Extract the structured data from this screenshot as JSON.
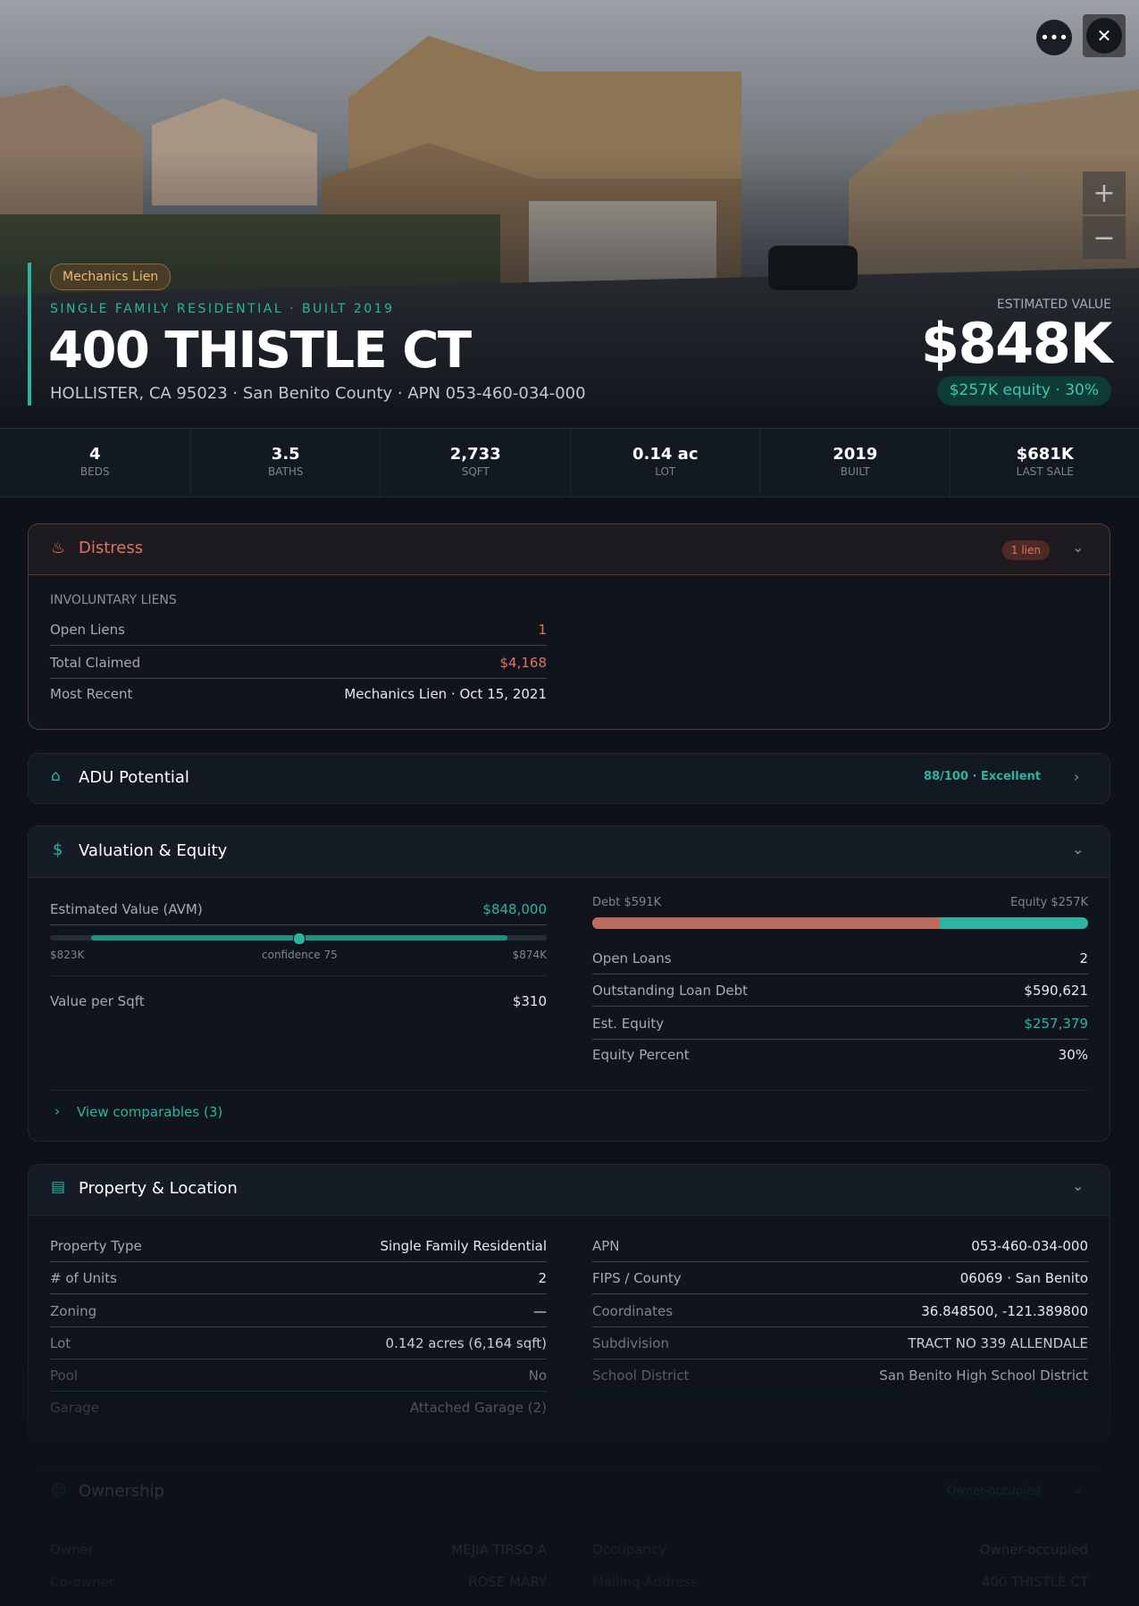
{
  "hero": {
    "badge": "Mechanics Lien",
    "subtitle": "SINGLE FAMILY RESIDENTIAL · BUILT 2019",
    "title": "400 THISTLE CT",
    "address": "HOLLISTER, CA 95023 · San Benito County · APN 053-460-034-000",
    "estimate_label": "ESTIMATED VALUE",
    "estimate_value": "$848K",
    "equity_pill": "$257K equity · 30%"
  },
  "stats": [
    {
      "value": "4",
      "label": "BEDS"
    },
    {
      "value": "3.5",
      "label": "BATHS"
    },
    {
      "value": "2,733",
      "label": "SQFT"
    },
    {
      "value": "0.14 ac",
      "label": "LOT"
    },
    {
      "value": "2019",
      "label": "BUILT"
    },
    {
      "value": "$681K",
      "label": "LAST SALE"
    }
  ],
  "distress": {
    "title": "Distress",
    "badge": "1 lien",
    "section": "INVOLUNTARY LIENS",
    "rows": [
      [
        "Open Liens",
        "1"
      ],
      [
        "Total Claimed",
        "$4,168"
      ],
      [
        "Most Recent",
        "Mechanics Lien · Oct 15, 2021"
      ]
    ]
  },
  "adu": {
    "title": "ADU Potential",
    "score": "88/100 · Excellent"
  },
  "valuation": {
    "title": "Valuation & Equity",
    "avm_label": "Estimated Value (AVM)",
    "avm_value": "$848,000",
    "range_low": "$823K",
    "confidence": "confidence 75",
    "range_high": "$874K",
    "per_sqft_label": "Value per Sqft",
    "per_sqft_value": "$310",
    "debt_label": "Debt $591K",
    "equity_label": "Equity $257K",
    "rows": [
      [
        "Open Loans",
        "2"
      ],
      [
        "Outstanding Loan Debt",
        "$590,621"
      ],
      [
        "Est. Equity",
        "$257,379"
      ],
      [
        "Equity Percent",
        "30%"
      ]
    ],
    "comparables": "View comparables (3)"
  },
  "property": {
    "title": "Property & Location",
    "left": [
      [
        "Property Type",
        "Single Family Residential"
      ],
      [
        "# of Units",
        "2"
      ],
      [
        "Zoning",
        "—"
      ],
      [
        "Lot",
        "0.142 acres (6,164 sqft)"
      ],
      [
        "Pool",
        "No"
      ],
      [
        "Garage",
        "Attached Garage (2)"
      ]
    ],
    "right": [
      [
        "APN",
        "053-460-034-000"
      ],
      [
        "FIPS / County",
        "06069 · San Benito"
      ],
      [
        "Coordinates",
        "36.848500, -121.389800"
      ],
      [
        "Subdivision",
        "TRACT NO 339 ALLENDALE"
      ],
      [
        "School District",
        "San Benito High School District"
      ]
    ]
  },
  "ownership": {
    "title": "Ownership",
    "badge": "Owner-occupied",
    "left": [
      [
        "Owner",
        "MEJIA TIRSO A"
      ],
      [
        "Co-owner",
        "ROSE MARY"
      ]
    ],
    "right": [
      [
        "Occupancy",
        "Owner-occupied"
      ],
      [
        "Mailing Address",
        "400 THISTLE CT"
      ]
    ]
  }
}
